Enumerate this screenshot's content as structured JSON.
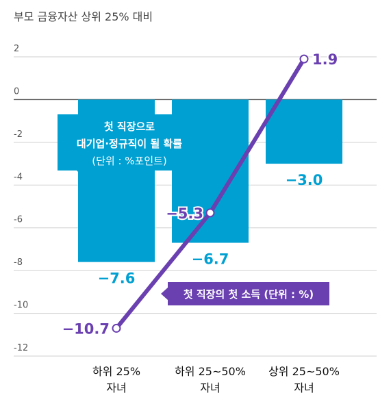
{
  "chart_data": {
    "type": "bar",
    "title": "부모 금융자산 상위 25% 대비",
    "categories": [
      {
        "line1": "하위 25%",
        "line2": "자녀"
      },
      {
        "line1": "하위 25~50%",
        "line2": "자녀"
      },
      {
        "line1": "상위 25~50%",
        "line2": "자녀"
      }
    ],
    "ylim": [
      -12,
      2
    ],
    "yticks": [
      "2",
      "0",
      "-2",
      "-4",
      "-6",
      "-8",
      "-10",
      "-12"
    ],
    "grid": true,
    "series": [
      {
        "type": "bar",
        "values": [
          -7.6,
          -6.7,
          -3.0
        ],
        "value_labels": [
          "−7.6",
          "−6.7",
          "−3.0"
        ],
        "color": "#00a0d2",
        "annotation": [
          "첫 직장으로",
          "대기업·정규직이 될 확률",
          "(단위 : %포인트)"
        ]
      },
      {
        "type": "line",
        "values": [
          -10.7,
          -5.3,
          1.9
        ],
        "value_labels": [
          "−10.7",
          "−5.3",
          "1.9"
        ],
        "color": "#6a3fb0",
        "annotation": "첫 직장의 첫 소득 (단위 : %)"
      }
    ]
  }
}
